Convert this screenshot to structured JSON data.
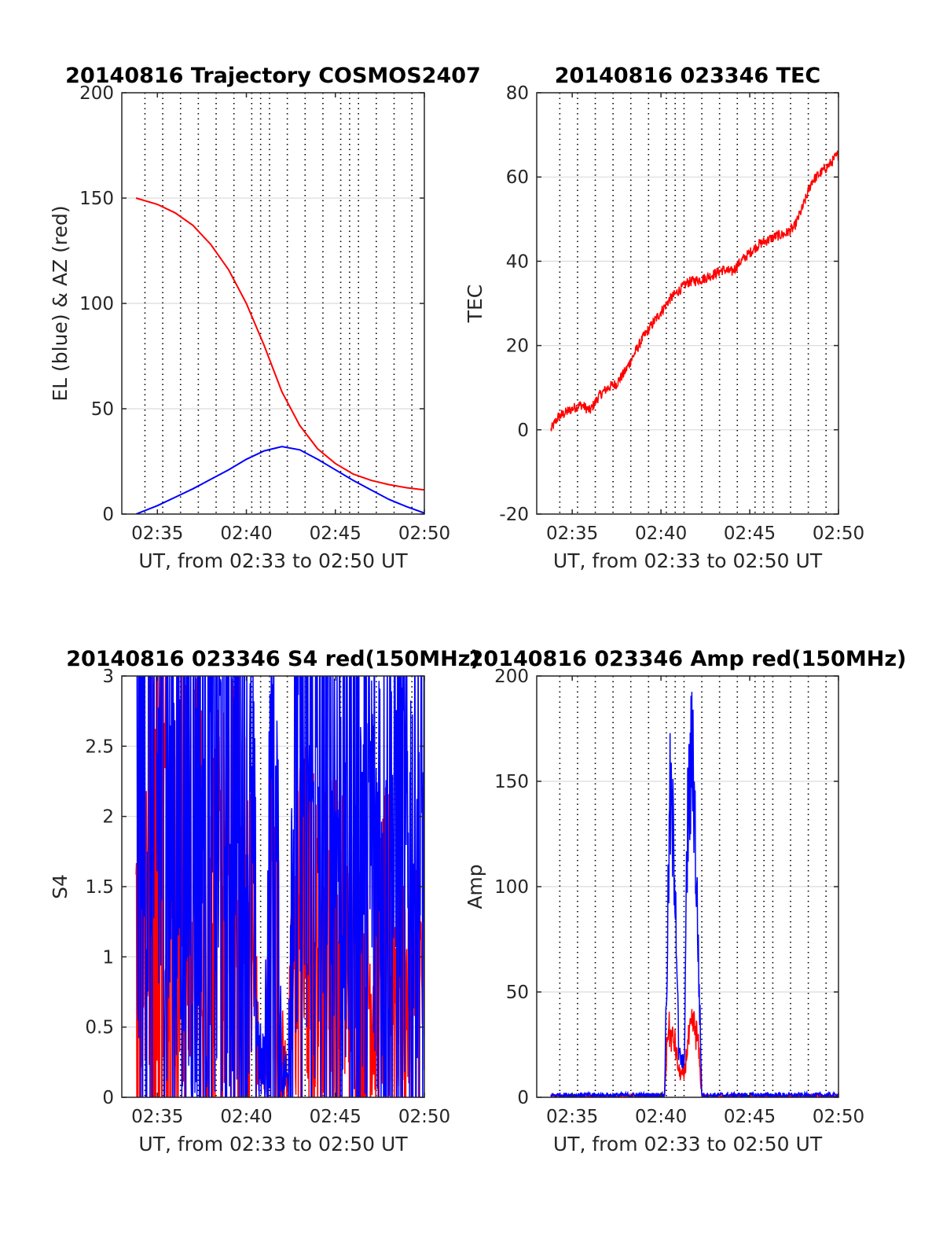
{
  "figure": {
    "background": "#ffffff",
    "colors": {
      "el": "#0000ff",
      "az": "#ff0000",
      "series_red": "#ff0000",
      "series_blue": "#0000ff",
      "grid_h": "#dcdcdc",
      "grid_v": "#000000",
      "axis": "#262626"
    }
  },
  "chart_data": [
    {
      "id": "trajectory",
      "type": "line",
      "title": "20140816 Trajectory COSMOS2407",
      "xlabel": "UT, from 02:33 to 02:50 UT",
      "ylabel": "EL (blue) & AZ (red)",
      "xlim": [
        "02:33",
        "02:50"
      ],
      "ylim": [
        0,
        200
      ],
      "xticks": [
        "02:35",
        "02:40",
        "02:45",
        "02:50"
      ],
      "yticks": [
        "0",
        "50",
        "100",
        "150",
        "200"
      ],
      "grid": "horizontal solid, vertical dotted markers",
      "markers": [
        "02:34.3",
        "02:35.3",
        "02:36.3",
        "02:37.3",
        "02:38.3",
        "02:39.3",
        "02:40.3",
        "02:40.8",
        "02:41.3",
        "02:42.3",
        "02:43.3",
        "02:44.3",
        "02:45.3",
        "02:45.8",
        "02:46.3",
        "02:47.3",
        "02:48.3",
        "02:49.3"
      ],
      "series": [
        {
          "color": "red",
          "x": [
            "02:33.8",
            "02:35",
            "02:36",
            "02:37",
            "02:38",
            "02:39",
            "02:40",
            "02:41",
            "02:42",
            "02:43",
            "02:44",
            "02:45",
            "02:46",
            "02:47",
            "02:48",
            "02:49",
            "02:50"
          ],
          "y": [
            150,
            147,
            143,
            137,
            128,
            116,
            100,
            80,
            58,
            42,
            31,
            24,
            19,
            16,
            14,
            12.5,
            11.5
          ]
        },
        {
          "color": "blue",
          "x": [
            "02:33.8",
            "02:35",
            "02:36",
            "02:37",
            "02:38",
            "02:39",
            "02:40",
            "02:41",
            "02:42",
            "02:43",
            "02:44",
            "02:45",
            "02:46",
            "02:47",
            "02:48",
            "02:49",
            "02:50"
          ],
          "y": [
            0,
            4,
            8,
            12,
            16.5,
            21,
            26,
            30,
            32,
            30.5,
            26,
            21,
            16,
            11.5,
            7,
            3.5,
            0.5
          ]
        }
      ]
    },
    {
      "id": "tec",
      "type": "line",
      "title": "20140816 023346 TEC",
      "xlabel": "UT, from 02:33 to 02:50 UT",
      "ylabel": "TEC",
      "xlim": [
        "02:33",
        "02:50"
      ],
      "ylim": [
        -20,
        80
      ],
      "xticks": [
        "02:35",
        "02:40",
        "02:45",
        "02:50"
      ],
      "yticks": [
        "-20",
        "0",
        "20",
        "40",
        "60",
        "80"
      ],
      "grid": "horizontal solid, vertical dotted markers",
      "markers": [
        "02:34.3",
        "02:35.3",
        "02:36.3",
        "02:37.3",
        "02:38.3",
        "02:39.3",
        "02:40.3",
        "02:40.8",
        "02:41.3",
        "02:42.3",
        "02:43.3",
        "02:44.3",
        "02:45.3",
        "02:45.8",
        "02:46.3",
        "02:47.3",
        "02:48.3",
        "02:49.3"
      ],
      "series": [
        {
          "color": "red",
          "noisy": true,
          "x": [
            "02:33.8",
            "02:34.2",
            "02:35",
            "02:35.5",
            "02:36",
            "02:36.5",
            "02:37",
            "02:37.5",
            "02:38",
            "02:38.5",
            "02:39",
            "02:39.5",
            "02:40",
            "02:40.5",
            "02:41",
            "02:41.5",
            "02:42",
            "02:42.5",
            "02:43",
            "02:43.5",
            "02:44",
            "02:44.5",
            "02:45",
            "02:45.5",
            "02:46",
            "02:46.5",
            "02:47",
            "02:47.5",
            "02:48",
            "02:48.5",
            "02:49",
            "02:49.5",
            "02:50"
          ],
          "y": [
            0,
            3,
            5,
            6,
            4.5,
            8,
            10,
            11,
            14,
            18,
            22,
            25,
            28,
            31,
            33,
            35,
            35.5,
            36,
            37,
            38,
            37.5,
            40,
            42,
            44,
            45,
            46,
            46.5,
            48,
            53,
            59,
            61,
            63,
            65.5
          ]
        }
      ]
    },
    {
      "id": "s4",
      "type": "line",
      "title": "20140816 023346 S4 red(150MHz)",
      "xlabel": "UT, from 02:33 to 02:50 UT",
      "ylabel": "S4",
      "xlim": [
        "02:33",
        "02:50"
      ],
      "ylim": [
        0,
        3
      ],
      "xticks": [
        "02:35",
        "02:40",
        "02:45",
        "02:50"
      ],
      "yticks": [
        "0",
        "0.5",
        "1",
        "1.5",
        "2",
        "2.5",
        "3"
      ],
      "grid": "horizontal solid, vertical dotted markers",
      "markers": [
        "02:34.3",
        "02:35.3",
        "02:36.3",
        "02:37.3",
        "02:38.3",
        "02:39.3",
        "02:40.3",
        "02:40.8",
        "02:41.3",
        "02:42.3",
        "02:43.3",
        "02:44.3",
        "02:45.3",
        "02:45.8",
        "02:46.3",
        "02:47.3",
        "02:48.3",
        "02:49.3"
      ],
      "series": [
        {
          "color": "red",
          "noisy": true,
          "x": [
            "02:33.8",
            "02:35",
            "02:36",
            "02:37",
            "02:38",
            "02:39",
            "02:39.5",
            "02:40",
            "02:40.4",
            "02:40.7",
            "02:41",
            "02:41.2",
            "02:41.5",
            "02:42",
            "02:42.3",
            "02:42.6",
            "02:43",
            "02:44",
            "02:45",
            "02:46",
            "02:47",
            "02:48",
            "02:49",
            "02:50"
          ],
          "y": [
            1.7,
            1.8,
            1.5,
            1.4,
            1.2,
            1.3,
            1.4,
            1.2,
            0.9,
            0.2,
            0.15,
            0.5,
            1.6,
            0.3,
            0.15,
            0.8,
            1.2,
            1.0,
            1.1,
            0.9,
            0.8,
            1.0,
            0.7,
            0.9
          ]
        },
        {
          "color": "blue",
          "noisy": true,
          "x": [
            "02:33.8",
            "02:35",
            "02:36",
            "02:37",
            "02:38",
            "02:39",
            "02:39.5",
            "02:40",
            "02:40.4",
            "02:40.7",
            "02:41",
            "02:41.2",
            "02:41.5",
            "02:42",
            "02:42.3",
            "02:42.6",
            "02:43",
            "02:44",
            "02:45",
            "02:46",
            "02:47",
            "02:48",
            "02:49",
            "02:50"
          ],
          "y": [
            2.0,
            2.1,
            2.0,
            1.9,
            2.0,
            2.1,
            2.0,
            1.8,
            1.4,
            0.25,
            0.2,
            1.0,
            2.2,
            0.2,
            0.15,
            2.0,
            2.4,
            1.8,
            2.0,
            1.9,
            1.7,
            1.8,
            1.6,
            1.7
          ]
        }
      ]
    },
    {
      "id": "amp",
      "type": "line",
      "title": "20140816 023346 Amp red(150MHz)",
      "xlabel": "UT, from 02:33 to 02:50 UT",
      "ylabel": "Amp",
      "xlim": [
        "02:33",
        "02:50"
      ],
      "ylim": [
        0,
        200
      ],
      "xticks": [
        "02:35",
        "02:40",
        "02:45",
        "02:50"
      ],
      "yticks": [
        "0",
        "50",
        "100",
        "150",
        "200"
      ],
      "grid": "horizontal solid, vertical dotted markers",
      "markers": [
        "02:34.3",
        "02:35.3",
        "02:36.3",
        "02:37.3",
        "02:38.3",
        "02:39.3",
        "02:40.3",
        "02:40.8",
        "02:41.3",
        "02:42.3",
        "02:43.3",
        "02:44.3",
        "02:45.3",
        "02:45.8",
        "02:46.3",
        "02:47.3",
        "02:48.3",
        "02:49.3"
      ],
      "series": [
        {
          "color": "red",
          "noisy": true,
          "x": [
            "02:33.8",
            "02:40.2",
            "02:40.4",
            "02:40.5",
            "02:40.8",
            "02:41",
            "02:41.3",
            "02:41.5",
            "02:41.8",
            "02:42",
            "02:42.1",
            "02:42.3",
            "02:50"
          ],
          "y": [
            0.3,
            0.5,
            35,
            30,
            25,
            12,
            10,
            25,
            35,
            30,
            25,
            0.5,
            0.3
          ]
        },
        {
          "color": "blue",
          "noisy": true,
          "x": [
            "02:33.8",
            "02:40.2",
            "02:40.4",
            "02:40.5",
            "02:40.8",
            "02:41",
            "02:41.3",
            "02:41.5",
            "02:41.8",
            "02:42",
            "02:42.1",
            "02:42.3",
            "02:50"
          ],
          "y": [
            1,
            1,
            90,
            140,
            110,
            20,
            15,
            130,
            168,
            100,
            70,
            1,
            1
          ]
        }
      ]
    }
  ]
}
